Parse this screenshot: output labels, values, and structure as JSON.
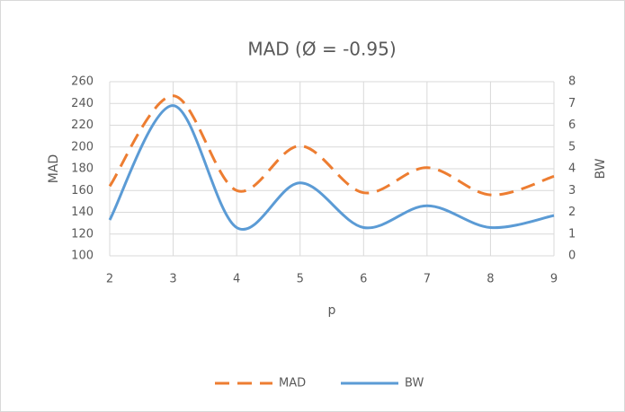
{
  "chart_data": {
    "type": "line",
    "title": "MAD  (Ø = -0.95)",
    "xlabel": "p",
    "ylabel": "MAD",
    "y2label": "BW",
    "x": [
      2,
      3,
      4,
      5,
      6,
      7,
      8,
      9
    ],
    "xlim": [
      2,
      9
    ],
    "xticks": [
      2,
      3,
      4,
      5,
      6,
      7,
      8,
      9
    ],
    "ylim": [
      100,
      260
    ],
    "yticks": [
      100,
      120,
      140,
      160,
      180,
      200,
      220,
      240,
      260
    ],
    "y2lim": [
      0,
      8
    ],
    "y2ticks": [
      0,
      1,
      2,
      3,
      4,
      5,
      6,
      7,
      8
    ],
    "grid": true,
    "legend": "bottom",
    "series": [
      {
        "name": "MAD",
        "color": "#ed7d31",
        "dash": "dashed",
        "values": [
          164,
          247,
          160,
          201,
          158,
          181,
          156,
          173
        ]
      },
      {
        "name": "BW",
        "color": "#5b9bd5",
        "dash": "solid",
        "axis": "y2",
        "values": [
          1.65,
          6.9,
          1.3,
          3.35,
          1.3,
          2.3,
          1.3,
          1.85
        ]
      }
    ]
  }
}
